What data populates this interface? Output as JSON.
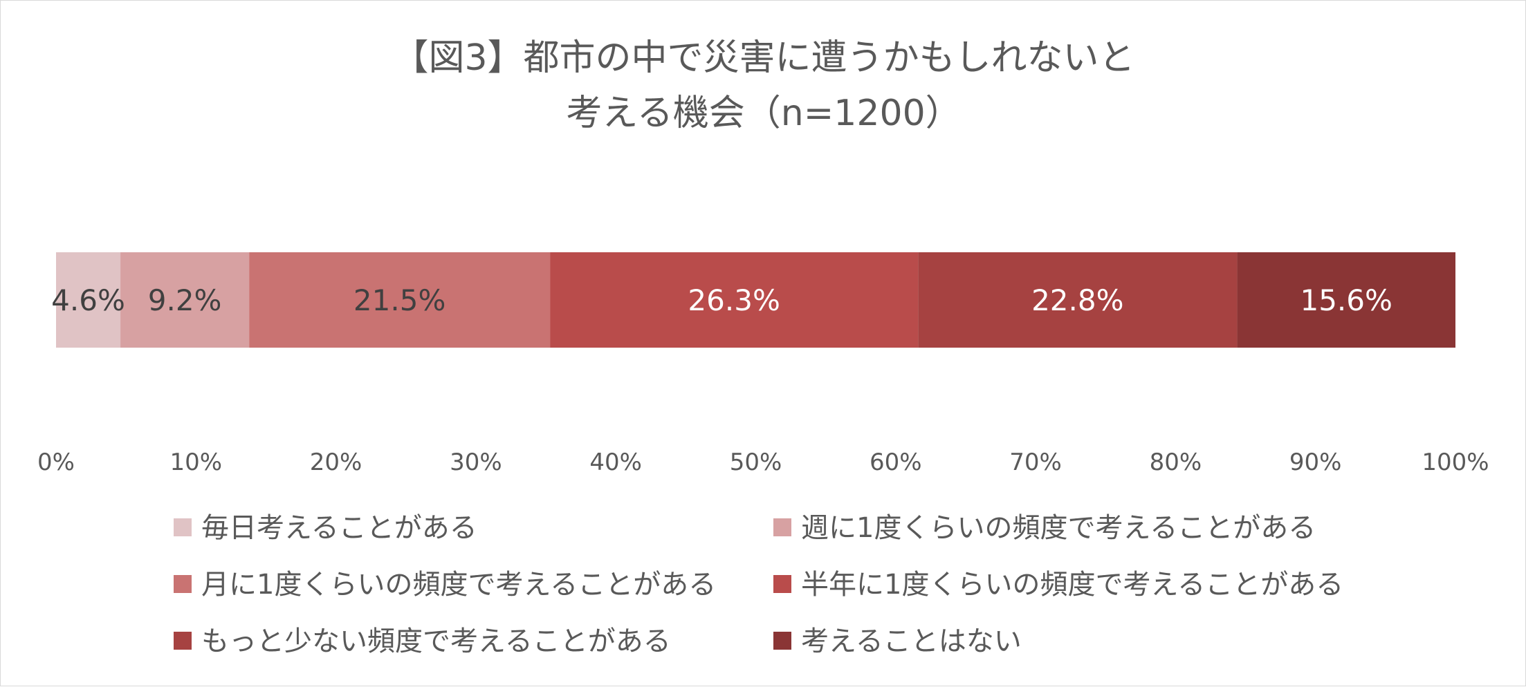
{
  "chart_data": {
    "type": "bar",
    "orientation": "horizontal",
    "stacked": true,
    "percent": true,
    "title": [
      "【図3】都市の中で災害に遭うかもしれないと",
      "考える機会（n=1200）"
    ],
    "categories": [
      ""
    ],
    "series": [
      {
        "name": "毎日考えることがある",
        "values": [
          4.6
        ],
        "label": "4.6%",
        "color": "#e0c3c5",
        "label_color": "#404040"
      },
      {
        "name": "週に1度くらいの頻度で考えることがある",
        "values": [
          9.2
        ],
        "label": "9.2%",
        "color": "#d7a1a2",
        "label_color": "#404040"
      },
      {
        "name": "月に1度くらいの頻度で考えることがある",
        "values": [
          21.5
        ],
        "label": "21.5%",
        "color": "#c97372",
        "label_color": "#404040"
      },
      {
        "name": "半年に1度くらいの頻度で考えることがある",
        "values": [
          26.3
        ],
        "label": "26.3%",
        "color": "#b94c4b",
        "label_color": "#ffffff"
      },
      {
        "name": "もっと少ない頻度で考えることがある",
        "values": [
          22.8
        ],
        "label": "22.8%",
        "color": "#a64241",
        "label_color": "#ffffff"
      },
      {
        "name": "考えることはない",
        "values": [
          15.6
        ],
        "label": "15.6%",
        "color": "#8a3535",
        "label_color": "#ffffff"
      }
    ],
    "xlim": [
      0,
      100
    ],
    "x_ticks": [
      "0%",
      "10%",
      "20%",
      "30%",
      "40%",
      "50%",
      "60%",
      "70%",
      "80%",
      "90%",
      "100%"
    ],
    "grid": false,
    "legend_position": "bottom"
  }
}
